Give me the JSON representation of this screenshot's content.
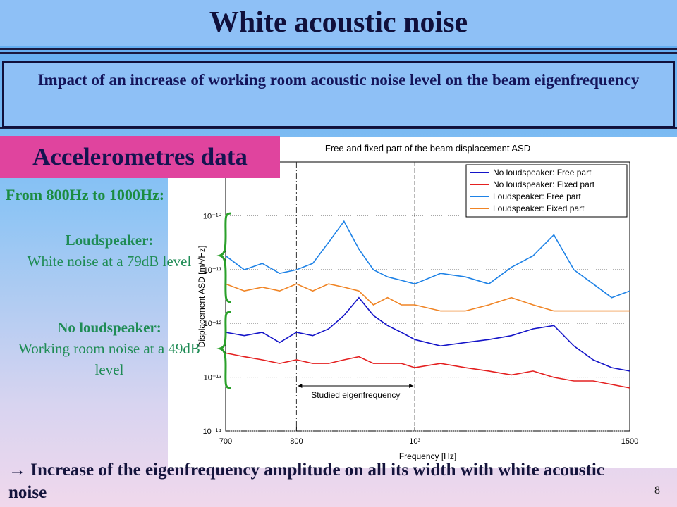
{
  "header": {
    "title": "White acoustic noise"
  },
  "subtitle": "Impact of an increase of working room acoustic noise level on the beam eigenfrequency",
  "section_label": "Accelerometres data",
  "range_text": "From 800Hz to 1000Hz:",
  "notes": [
    {
      "heading": "Loudspeaker:",
      "text": "White noise at a 79dB level"
    },
    {
      "heading": "No loudspeaker:",
      "text": "Working room noise at a 49dB level"
    }
  ],
  "conclusion": "→ Increase of the eigenfrequency amplitude on all its width with white acoustic noise",
  "page_number": "8",
  "chart_data": {
    "type": "line",
    "title": "Free and fixed part of the beam displacement ASD",
    "x_label": "Frequency [Hz]",
    "y_label": "Displacement ASD [m/√Hz]",
    "annotation": "Studied eigenfrequency",
    "x": [
      700,
      725,
      750,
      775,
      800,
      825,
      850,
      875,
      900,
      925,
      950,
      975,
      1000,
      1050,
      1100,
      1150,
      1200,
      1250,
      1300,
      1350,
      1400,
      1450,
      1500
    ],
    "series": [
      {
        "name": "No loudspeaker: Free part",
        "color": "#1414c8",
        "values": [
          6.8e-13,
          5.9e-13,
          6.8e-13,
          4.4e-13,
          6.8e-13,
          5.9e-13,
          7.9e-13,
          1.4e-12,
          3e-12,
          1.4e-12,
          9.1e-13,
          6.8e-13,
          5e-13,
          3.8e-13,
          4.4e-13,
          5e-13,
          5.9e-13,
          7.9e-13,
          9.1e-13,
          3.8e-13,
          2.1e-13,
          1.5e-13,
          1.3e-13
        ]
      },
      {
        "name": "No loudspeaker: Fixed part",
        "color": "#e42020",
        "values": [
          2.8e-13,
          2.4e-13,
          2.1e-13,
          1.8e-13,
          2.1e-13,
          1.8e-13,
          1.8e-13,
          2.1e-13,
          2.4e-13,
          1.8e-13,
          1.8e-13,
          1.8e-13,
          1.5e-13,
          1.8e-13,
          1.5e-13,
          1.3e-13,
          1.1e-13,
          1.3e-13,
          9.9e-14,
          8.5e-14,
          8.5e-14,
          7.3e-14,
          6.3e-14
        ]
      },
      {
        "name": "Loudspeaker: Free part",
        "color": "#1e82e6",
        "values": [
          1.8e-11,
          9.9e-12,
          1.3e-11,
          8.5e-12,
          9.9e-12,
          1.3e-11,
          3.2e-11,
          7.9e-11,
          2.4e-11,
          9.9e-12,
          7.3e-12,
          6.3e-12,
          5.4e-12,
          8.5e-12,
          7.3e-12,
          5.4e-12,
          1.1e-11,
          1.8e-11,
          4.4e-11,
          9.9e-12,
          5.4e-12,
          3e-12,
          4e-12
        ]
      },
      {
        "name": "Loudspeaker: Fixed part",
        "color": "#f08424",
        "values": [
          5.4e-12,
          4e-12,
          4.7e-12,
          4e-12,
          5.4e-12,
          4e-12,
          5.4e-12,
          4.7e-12,
          4e-12,
          2.2e-12,
          3e-12,
          2.2e-12,
          2.2e-12,
          1.7e-12,
          1.7e-12,
          2.2e-12,
          3e-12,
          2.2e-12,
          1.7e-12,
          1.7e-12,
          1.7e-12,
          1.7e-12,
          1.7e-12
        ]
      }
    ],
    "xlim": [
      700,
      1500
    ],
    "xticks": [
      700,
      800,
      {
        "value": 1000,
        "label": "10³"
      },
      1500
    ],
    "ylim": [
      1e-14,
      1e-09
    ],
    "yticks": [
      {
        "value": 1e-14,
        "label": "10⁻¹⁴"
      },
      {
        "value": 1e-13,
        "label": "10⁻¹³"
      },
      {
        "value": 1e-12,
        "label": "10⁻¹²"
      },
      {
        "value": 1e-11,
        "label": "10⁻¹¹"
      },
      {
        "value": 1e-10,
        "label": "10⁻¹⁰"
      }
    ],
    "x_log": true,
    "y_log": true,
    "grid": true,
    "legend": "upper right"
  }
}
